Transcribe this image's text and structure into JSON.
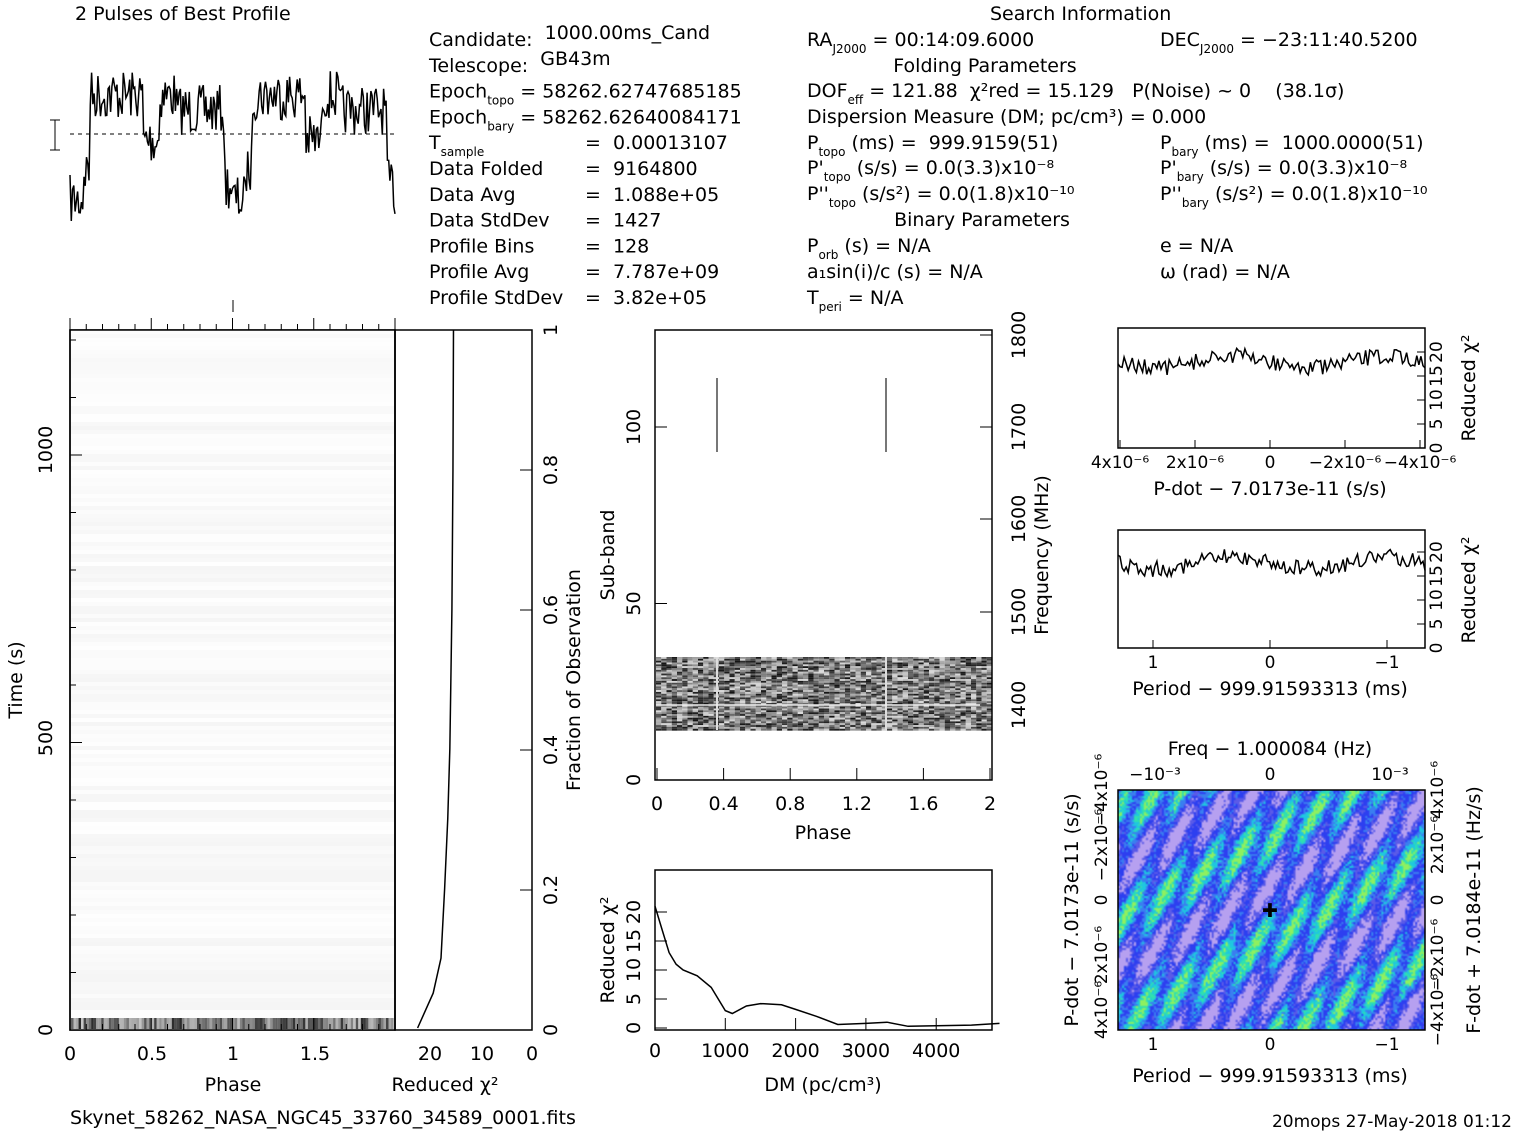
{
  "title_profile": "2 Pulses of Best Profile",
  "title_search": "Search Information",
  "filename": "Skynet_58262_NASA_NGC45_33760_34589_0001.fits",
  "footer": "20mops 27-May-2018 01:12",
  "info_left": [
    {
      "name": "Candidate:",
      "sub": "",
      "value": "  1000.00ms_Cand"
    },
    {
      "name": "Telescope:",
      "sub": "",
      "value": "  GB43m"
    },
    {
      "name": "Epoch",
      "sub": "topo",
      "value": " = 58262.62747685185"
    },
    {
      "name": "Epoch",
      "sub": "bary",
      "value": " = 58262.62640084171"
    },
    {
      "name": "T",
      "sub": "sample",
      "value": "=  0.00013107"
    },
    {
      "name": "Data Folded",
      "sub": "",
      "value": "=  9164800"
    },
    {
      "name": "Data Avg",
      "sub": "",
      "value": "=  1.088e+05"
    },
    {
      "name": "Data StdDev",
      "sub": "",
      "value": "=  1427"
    },
    {
      "name": "Profile Bins",
      "sub": "",
      "value": "=  128"
    },
    {
      "name": "Profile Avg",
      "sub": "",
      "value": "=  7.787e+09"
    },
    {
      "name": "Profile StdDev",
      "sub": "",
      "value": "=  3.82e+05"
    }
  ],
  "info_mid": {
    "ra": {
      "name": "RA",
      "sub": "J2000",
      "value": " = 00:14:09.6000"
    },
    "folding_header": "Folding Parameters",
    "dof": {
      "name": "DOF",
      "sub": "eff",
      "value": " = 121.88  χ²red = 15.129   P(Noise) ~ 0    (38.1σ)"
    },
    "dm": "Dispersion Measure (DM; pc/cm³) = 0.000",
    "ptopo": {
      "name": "P",
      "sub": "topo",
      "value": " (ms) =  999.9159(51)"
    },
    "pdtopo": {
      "name": "P'",
      "sub": "topo",
      "value": " (s/s) = 0.0(3.3)x10⁻⁸"
    },
    "pddtopo": {
      "name": "P''",
      "sub": "topo",
      "value": " (s/s²) = 0.0(1.8)x10⁻¹⁰"
    },
    "binary_header": "Binary Parameters",
    "porb": {
      "name": "P",
      "sub": "orb",
      "value": " (s) = N/A"
    },
    "asini": "a₁sin(i)/c (s) = N/A",
    "tperi": {
      "name": "T",
      "sub": "peri",
      "value": " = N/A"
    }
  },
  "info_right": {
    "dec": {
      "name": "DEC",
      "sub": "J2000",
      "value": " = −23:11:40.5200"
    },
    "pbary": {
      "name": "P",
      "sub": "bary",
      "value": " (ms) =  1000.0000(51)"
    },
    "pdbary": {
      "name": "P'",
      "sub": "bary",
      "value": " (s/s) = 0.0(3.3)x10⁻⁸"
    },
    "pddbary": {
      "name": "P''",
      "sub": "bary",
      "value": " (s/s²) = 0.0(1.8)x10⁻¹⁰"
    },
    "e": "e = N/A",
    "omega": "ω (rad) = N/A"
  },
  "chart_data": [
    {
      "type": "line",
      "title": "2 Pulses of Best Profile",
      "xlabel": "",
      "ylabel": "",
      "note": "pulse profile (2 periods), noisy, dip near phase 0 and 1"
    },
    {
      "type": "heatmap",
      "xlabel": "Phase",
      "ylabel": "Time (s)",
      "xticks": [
        "0",
        "0.5",
        "1",
        "1.5"
      ],
      "yticks": [
        "0",
        "500",
        "1000"
      ],
      "xlim": [
        0,
        2
      ],
      "ylim": [
        0,
        1200
      ]
    },
    {
      "type": "line",
      "xlabel": "Reduced χ²",
      "ylabel": "Fraction of Observation",
      "xticks": [
        "20",
        "10",
        "0"
      ],
      "yticks": [
        "0",
        "0.2",
        "0.4",
        "0.6",
        "0.8",
        "1"
      ],
      "xlim": [
        25,
        0
      ],
      "ylim": [
        0,
        1
      ],
      "x": [
        22,
        19,
        17.5,
        16.8,
        16.2,
        15.8,
        15.6,
        15.4,
        15.3,
        15.2,
        15.1
      ],
      "y": [
        0.0,
        0.05,
        0.1,
        0.2,
        0.3,
        0.4,
        0.5,
        0.6,
        0.7,
        0.8,
        1.0
      ]
    },
    {
      "type": "heatmap",
      "xlabel": "Phase",
      "ylabel": "Sub-band",
      "y2label": "Frequency (MHz)",
      "xticks": [
        "0",
        "0.4",
        "0.8",
        "1.2",
        "1.6",
        "2"
      ],
      "yticks": [
        "0",
        "50",
        "100"
      ],
      "y2ticks": [
        "1400",
        "1500",
        "1600",
        "1700",
        "1800"
      ],
      "xlim": [
        0,
        2
      ],
      "ylim": [
        0,
        128
      ]
    },
    {
      "type": "line",
      "xlabel": "DM (pc/cm³)",
      "ylabel": "Reduced χ²",
      "xticks": [
        "0",
        "1000",
        "2000",
        "3000",
        "4000"
      ],
      "yticks": [
        "0",
        "5",
        "10",
        "15",
        "20"
      ],
      "xlim": [
        0,
        4900
      ],
      "ylim": [
        0,
        23
      ],
      "x": [
        0,
        100,
        200,
        300,
        400,
        600,
        800,
        1000,
        1100,
        1300,
        1500,
        1800,
        2000,
        2300,
        2600,
        3000,
        3300,
        3600,
        4000,
        4500,
        4900
      ],
      "y": [
        21,
        17,
        13,
        11,
        10,
        9,
        7,
        3,
        2.5,
        3.8,
        4.2,
        4,
        3.2,
        2,
        0.6,
        0.8,
        1.0,
        0.3,
        0.4,
        0.5,
        0.8
      ]
    },
    {
      "type": "line",
      "xlabel": "P-dot − 7.0173e-11 (s/s)",
      "ylabel": "Reduced χ²",
      "xticks": [
        "4x10⁻⁶",
        "2x10⁻⁶",
        "0",
        "−2x10⁻⁶",
        "−4x10⁻⁶"
      ],
      "yticks": [
        "0",
        "5",
        "10",
        "15",
        "20"
      ],
      "ylim": [
        0,
        23
      ]
    },
    {
      "type": "line",
      "xlabel": "Period − 999.91593313 (ms)",
      "ylabel": "Reduced χ²",
      "xticks": [
        "1",
        "0",
        "−1"
      ],
      "yticks": [
        "0",
        "5",
        "10",
        "15",
        "20"
      ],
      "ylim": [
        0,
        23
      ]
    },
    {
      "type": "heatmap",
      "title": "Freq − 1.000084 (Hz)",
      "xlabel": "Period − 999.91593313 (ms)",
      "ylabel": "P-dot − 7.0173e-11 (s/s)",
      "y2label": "F-dot + 7.0184e-11 (Hz/s)",
      "xticks": [
        "1",
        "0",
        "−1"
      ],
      "x2ticks": [
        "−10⁻³",
        "0",
        "10⁻³"
      ],
      "yticks": [
        "4x10⁻⁶",
        "2x10⁻⁶",
        "0",
        "−2x10⁻⁶",
        "−4x10⁻⁶"
      ],
      "y2ticks": [
        "−4x10⁻⁶",
        "−2x10⁻⁶",
        "0",
        "2x10⁻⁶",
        "4x10⁻⁶"
      ]
    }
  ]
}
